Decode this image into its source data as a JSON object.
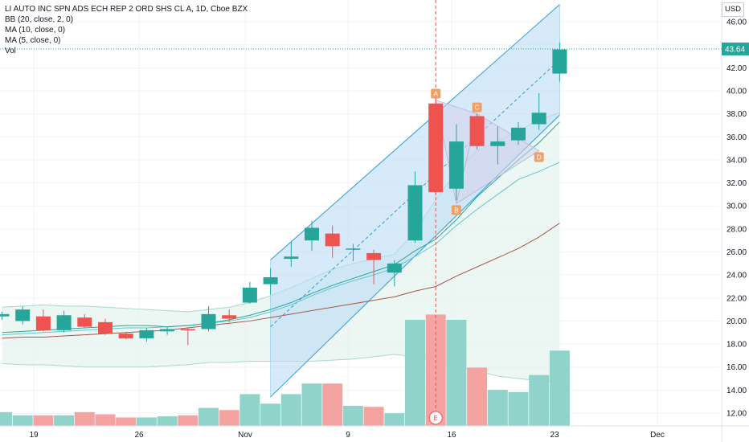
{
  "legend": {
    "title": "LI AUTO INC SPN ADS ECH REP 2 ORD SHS CL A, 1D, Cboe BZX",
    "bb": "BB (20, close, 2, 0)",
    "ma10": "MA (10, close, 0)",
    "ma5": "MA (5, close, 0)",
    "vol": "Vol"
  },
  "currency": "USD",
  "last_price": "43.64",
  "earnings_marker": "E",
  "pattern_points": [
    "A",
    "B",
    "C",
    "D"
  ],
  "colors": {
    "up": "#26a69a",
    "down": "#ef5350",
    "vol_up": "#8fd3ca",
    "vol_down": "#f5a3a1",
    "channel_line": "#2f9bd6",
    "channel_fill": "#bcdcf6",
    "bb_fill": "#e6f3ef",
    "ma10": "#26a69a",
    "ma5": "#5fc7cf",
    "sma_long": "#a5574a",
    "pattern_marker": "#ef9f67",
    "grid": "#f0f3fa",
    "axis_text": "#131722"
  },
  "chart_data": {
    "type": "candlestick",
    "y_axis": {
      "min": 11,
      "max": 47,
      "ticks": [
        "12.00",
        "14.00",
        "16.00",
        "18.00",
        "20.00",
        "22.00",
        "24.00",
        "26.00",
        "28.00",
        "30.00",
        "32.00",
        "34.00",
        "36.00",
        "38.00",
        "40.00",
        "42.00",
        "44.00",
        "46.00"
      ]
    },
    "x_axis": {
      "labels": [
        "19",
        "26",
        "Nov",
        "9",
        "16",
        "23",
        "Dec"
      ]
    },
    "candles": [
      {
        "o": 20.4,
        "h": 20.8,
        "l": 20.1,
        "c": 20.6
      },
      {
        "o": 20.0,
        "h": 21.3,
        "l": 19.7,
        "c": 21.0
      },
      {
        "o": 20.4,
        "h": 21.0,
        "l": 19.1,
        "c": 19.2
      },
      {
        "o": 19.2,
        "h": 20.9,
        "l": 19.0,
        "c": 20.5
      },
      {
        "o": 20.3,
        "h": 20.6,
        "l": 19.4,
        "c": 19.5
      },
      {
        "o": 19.9,
        "h": 20.2,
        "l": 18.8,
        "c": 18.9
      },
      {
        "o": 18.9,
        "h": 19.0,
        "l": 18.4,
        "c": 18.5
      },
      {
        "o": 18.5,
        "h": 19.4,
        "l": 18.2,
        "c": 19.2
      },
      {
        "o": 19.1,
        "h": 19.5,
        "l": 18.8,
        "c": 19.3
      },
      {
        "o": 19.3,
        "h": 19.4,
        "l": 17.9,
        "c": 19.2
      },
      {
        "o": 19.3,
        "h": 21.3,
        "l": 19.1,
        "c": 20.6
      },
      {
        "o": 20.5,
        "h": 21.0,
        "l": 19.9,
        "c": 20.2
      },
      {
        "o": 21.6,
        "h": 23.4,
        "l": 21.5,
        "c": 22.9
      },
      {
        "o": 23.2,
        "h": 24.6,
        "l": 22.3,
        "c": 23.8
      },
      {
        "o": 25.4,
        "h": 26.9,
        "l": 24.7,
        "c": 25.6
      },
      {
        "o": 27.0,
        "h": 28.7,
        "l": 26.1,
        "c": 28.1
      },
      {
        "o": 27.6,
        "h": 28.3,
        "l": 25.5,
        "c": 26.5
      },
      {
        "o": 26.2,
        "h": 26.7,
        "l": 25.2,
        "c": 26.3
      },
      {
        "o": 25.9,
        "h": 26.2,
        "l": 23.2,
        "c": 25.3
      },
      {
        "o": 24.2,
        "h": 25.3,
        "l": 23.0,
        "c": 25.0
      },
      {
        "o": 27.0,
        "h": 33.0,
        "l": 26.8,
        "c": 31.8
      },
      {
        "o": 38.9,
        "h": 39.4,
        "l": 30.9,
        "c": 31.2
      },
      {
        "o": 31.5,
        "h": 37.1,
        "l": 30.5,
        "c": 35.6
      },
      {
        "o": 37.8,
        "h": 38.0,
        "l": 34.9,
        "c": 35.2
      },
      {
        "o": 35.2,
        "h": 36.9,
        "l": 33.6,
        "c": 35.6
      },
      {
        "o": 35.7,
        "h": 37.3,
        "l": 35.3,
        "c": 36.8
      },
      {
        "o": 37.1,
        "h": 39.8,
        "l": 36.6,
        "c": 38.1
      },
      {
        "o": 41.5,
        "h": 44.2,
        "l": 40.8,
        "c": 43.6
      }
    ],
    "volume_relative": [
      0.13,
      0.1,
      0.1,
      0.1,
      0.13,
      0.11,
      0.08,
      0.08,
      0.09,
      0.1,
      0.17,
      0.15,
      0.3,
      0.21,
      0.3,
      0.4,
      0.4,
      0.19,
      0.18,
      0.12,
      1.0,
      1.05,
      1.0,
      0.55,
      0.34,
      0.32,
      0.48,
      0.71
    ],
    "ma10": [
      19.0,
      19.1,
      19.2,
      19.3,
      19.4,
      19.5,
      19.6,
      19.6,
      19.5,
      19.6,
      19.8,
      20.1,
      20.5,
      21.0,
      21.6,
      22.4,
      23.1,
      23.7,
      24.3,
      24.9,
      26.1,
      27.1,
      28.8,
      30.8,
      32.4,
      34.0,
      35.5,
      37.3
    ],
    "ma5": [
      18.8,
      18.9,
      19.0,
      19.1,
      19.2,
      19.3,
      19.4,
      19.4,
      19.5,
      19.6,
      19.8,
      20.0,
      20.3,
      20.8,
      21.4,
      22.2,
      22.9,
      23.5,
      24.0,
      24.6,
      25.6,
      26.7,
      28.3,
      29.7,
      31.0,
      32.3,
      33.0,
      33.8
    ],
    "sma_long": [
      18.5,
      18.6,
      18.6,
      18.7,
      18.8,
      18.9,
      19.0,
      19.1,
      19.2,
      19.4,
      19.6,
      19.8,
      20.0,
      20.3,
      20.6,
      20.9,
      21.2,
      21.5,
      21.8,
      22.1,
      22.6,
      23.0,
      23.9,
      24.7,
      25.5,
      26.3,
      27.3,
      28.5
    ],
    "bb_upper": [
      21.2,
      21.3,
      21.4,
      21.3,
      21.3,
      21.2,
      21.1,
      21.0,
      20.9,
      20.8,
      21.0,
      21.2,
      21.6,
      22.2,
      22.9,
      23.7,
      24.5,
      25.0,
      25.4,
      25.8,
      27.8,
      30.5,
      33.0,
      34.8,
      35.6,
      36.5,
      37.5,
      38.1
    ],
    "bb_lower": [
      16.3,
      16.2,
      16.2,
      16.1,
      16.0,
      16.0,
      16.0,
      16.0,
      16.1,
      16.2,
      16.4,
      16.4,
      16.5,
      16.5,
      16.5,
      16.5,
      16.6,
      16.7,
      16.9,
      17.1,
      16.9,
      16.6,
      16.1,
      15.7,
      15.2,
      15.0,
      14.8,
      14.7
    ],
    "trend_channel": {
      "start_index": 13,
      "end_index": 27,
      "upper_start": 25.3,
      "upper_end": 47.5,
      "lower_start": 13.4,
      "lower_end": 37.9,
      "mid_start": 19.5,
      "mid_end": 42.7
    },
    "pattern_abcd": [
      {
        "label": "A",
        "index": 21,
        "value": 39.2
      },
      {
        "label": "B",
        "index": 22,
        "value": 30.2
      },
      {
        "label": "C",
        "index": 23,
        "value": 38.0
      },
      {
        "label": "D",
        "index": 26,
        "value": 34.8
      }
    ],
    "earnings_index": 21,
    "last_price": 43.64
  }
}
